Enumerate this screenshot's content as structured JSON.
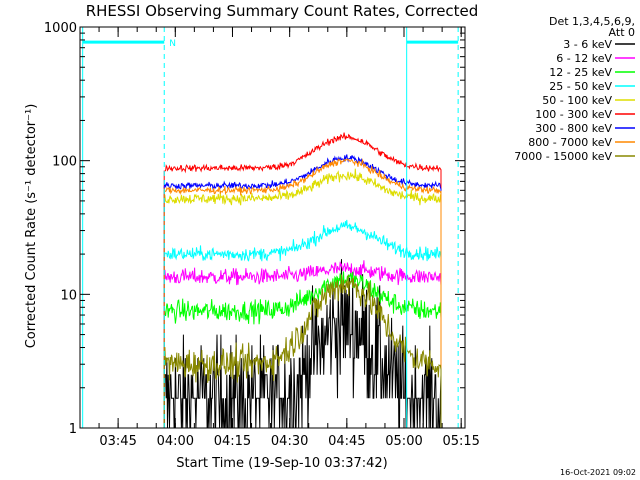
{
  "chart_data": {
    "type": "line",
    "title": "RHESSI Observing Summary Count Rates, Corrected",
    "xlabel": "Start Time (19-Sep-10 03:37:42)",
    "ylabel": "Corrected Count Rate (s⁻¹ detector⁻¹)",
    "yscale": "log",
    "ylim": [
      1,
      1000
    ],
    "xlim_minutes": [
      -2.7,
      98.3
    ],
    "x_ticks": [
      {
        "label": "03:45",
        "minutes": 7.3
      },
      {
        "label": "04:00",
        "minutes": 22.3
      },
      {
        "label": "04:15",
        "minutes": 37.3
      },
      {
        "label": "04:30",
        "minutes": 52.3
      },
      {
        "label": "04:45",
        "minutes": 67.3
      },
      {
        "label": "05:00",
        "minutes": 82.3
      },
      {
        "label": "05:15",
        "minutes": 97.3
      }
    ],
    "y_ticks": [
      {
        "label": "1",
        "value": 1
      },
      {
        "label": "10",
        "value": 10
      },
      {
        "label": "100",
        "value": 100
      },
      {
        "label": "1000",
        "value": 1000
      }
    ],
    "legend_header": [
      "Det 1,3,4,5,6,9,",
      "Att 0"
    ],
    "legend_position": "right",
    "grid": false,
    "data_window_minutes": [
      19.4,
      92.0
    ],
    "peak_minutes": 67.0,
    "series": [
      {
        "name": "3 - 6 keV",
        "color": "#000000",
        "base": 1.6,
        "peak": 6.0,
        "width": 9,
        "noise": 0.45
      },
      {
        "name": "6 - 12 keV",
        "color": "#ff00ff",
        "base": 13.5,
        "peak": 15.5,
        "width": 10,
        "noise": 0.06
      },
      {
        "name": "12 - 25 keV",
        "color": "#00ff00",
        "base": 7.5,
        "peak": 13.0,
        "width": 10,
        "noise": 0.08
      },
      {
        "name": "25 - 50 keV",
        "color": "#00ffff",
        "base": 20.0,
        "peak": 32.0,
        "width": 10,
        "noise": 0.05
      },
      {
        "name": "50 - 100 keV",
        "color": "#dddd00",
        "base": 52.0,
        "peak": 78.0,
        "width": 10,
        "noise": 0.04
      },
      {
        "name": "100 - 300 keV",
        "color": "#ff0000",
        "base": 88.0,
        "peak": 150.0,
        "width": 10,
        "noise": 0.025
      },
      {
        "name": "300 - 800 keV",
        "color": "#0000ff",
        "base": 65.0,
        "peak": 105.0,
        "width": 10,
        "noise": 0.025
      },
      {
        "name": "800 - 7000 keV",
        "color": "#ff8800",
        "base": 60.0,
        "peak": 100.0,
        "width": 10,
        "noise": 0.025
      },
      {
        "name": "7000 - 15000 keV",
        "color": "#888800",
        "base": 3.0,
        "peak": 12.0,
        "width": 10,
        "noise": 0.12
      }
    ],
    "annotations": [
      {
        "type": "flag_bar",
        "label": "N",
        "color": "#00ffff",
        "x_start_minutes": -2.0,
        "x_end_minutes": 19.4,
        "y_value": 770
      },
      {
        "type": "flag_bar",
        "label": "",
        "color": "#00ffff",
        "x_start_minutes": 83.0,
        "x_end_minutes": 96.5,
        "y_value": 770
      },
      {
        "type": "vline",
        "style": "solid",
        "color": "#00ffff",
        "x_minutes": -2.0
      },
      {
        "type": "vline",
        "style": "dashed",
        "color": "#00ffff",
        "x_minutes": 19.4
      },
      {
        "type": "vline",
        "style": "solid",
        "color": "#00ffff",
        "x_minutes": 83.0
      },
      {
        "type": "vline",
        "style": "dashed",
        "color": "#00ffff",
        "x_minutes": 96.5
      }
    ]
  },
  "footer": {
    "timestamp": "16-Oct-2021 09:02"
  }
}
